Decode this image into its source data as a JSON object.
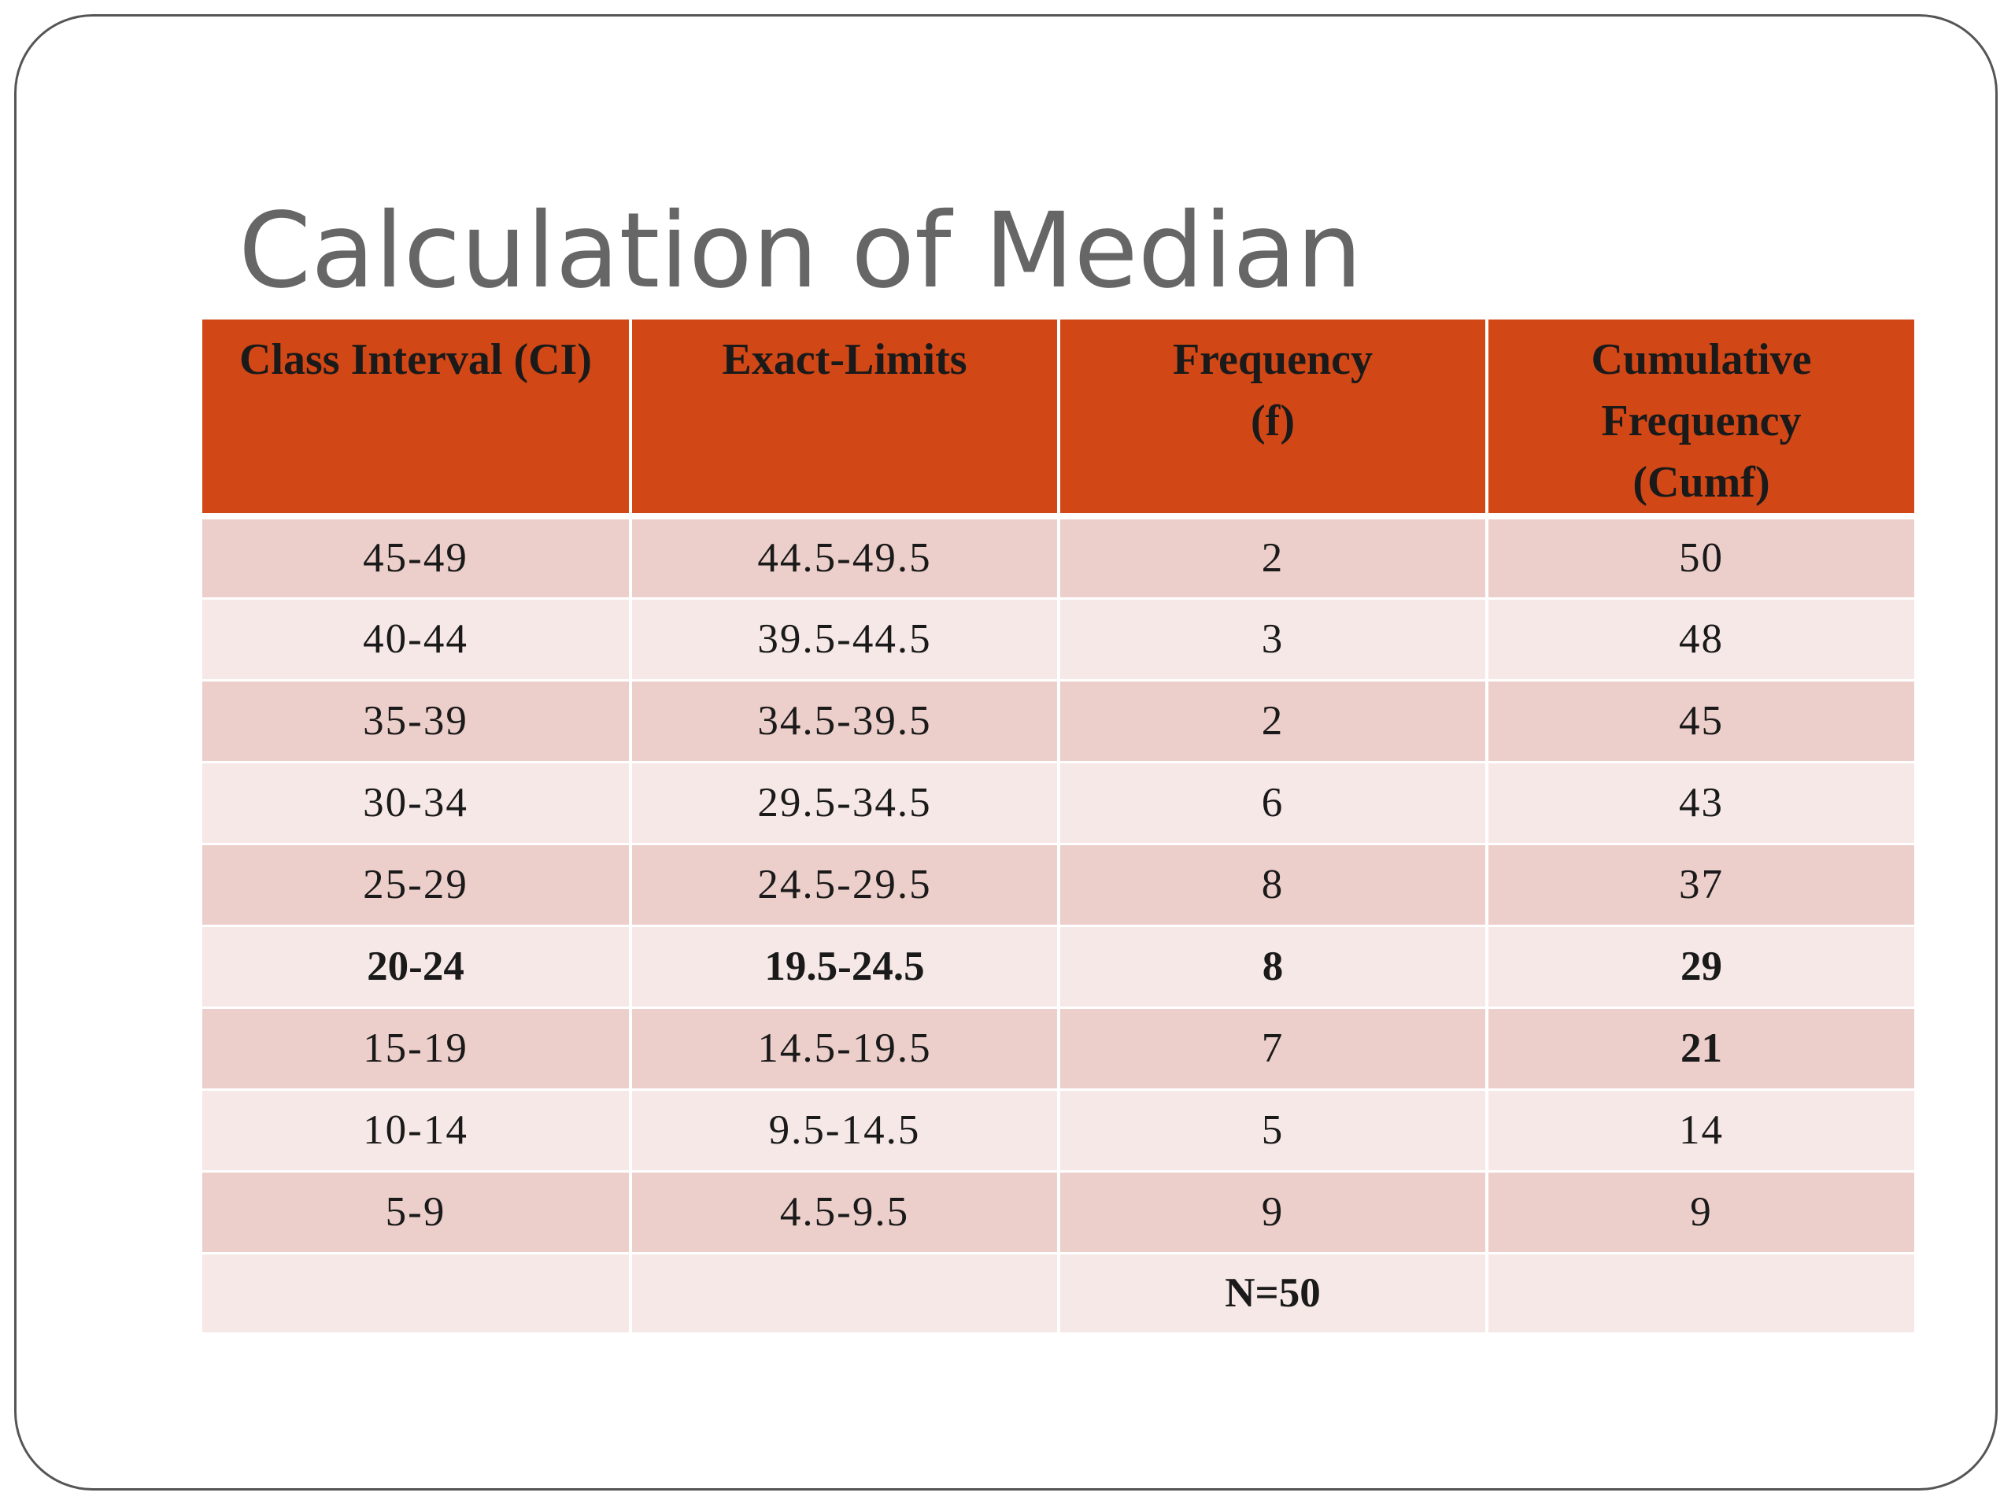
{
  "slide": {
    "title": "Calculation of Median"
  },
  "table": {
    "headers": [
      "Class Interval (CI)",
      "Exact-Limits",
      "Frequency (f)",
      "Cumulative Frequency (Cumf)"
    ],
    "rows": [
      {
        "ci": "45-49",
        "exact": "44.5-49.5",
        "f": "2",
        "cumf": "50"
      },
      {
        "ci": "40-44",
        "exact": "39.5-44.5",
        "f": "3",
        "cumf": "48"
      },
      {
        "ci": "35-39",
        "exact": "34.5-39.5",
        "f": "2",
        "cumf": "45"
      },
      {
        "ci": "30-34",
        "exact": "29.5-34.5",
        "f": "6",
        "cumf": "43"
      },
      {
        "ci": "25-29",
        "exact": "24.5-29.5",
        "f": "8",
        "cumf": "37"
      },
      {
        "ci": "20-24",
        "exact": "19.5-24.5",
        "f": "8",
        "cumf": "29"
      },
      {
        "ci": "15-19",
        "exact": "14.5-19.5",
        "f": "7",
        "cumf": "21"
      },
      {
        "ci": "10-14",
        "exact": "9.5-14.5",
        "f": "5",
        "cumf": "14"
      },
      {
        "ci": "5-9",
        "exact": "4.5-9.5",
        "f": "9",
        "cumf": "9"
      }
    ],
    "total": {
      "ci": "",
      "exact": "",
      "f": "N=50",
      "cumf": ""
    }
  },
  "colors": {
    "header_background": "#d24716",
    "row_dark": "#ecceca",
    "row_light": "#f6e8e6",
    "title_text": "#666666"
  }
}
